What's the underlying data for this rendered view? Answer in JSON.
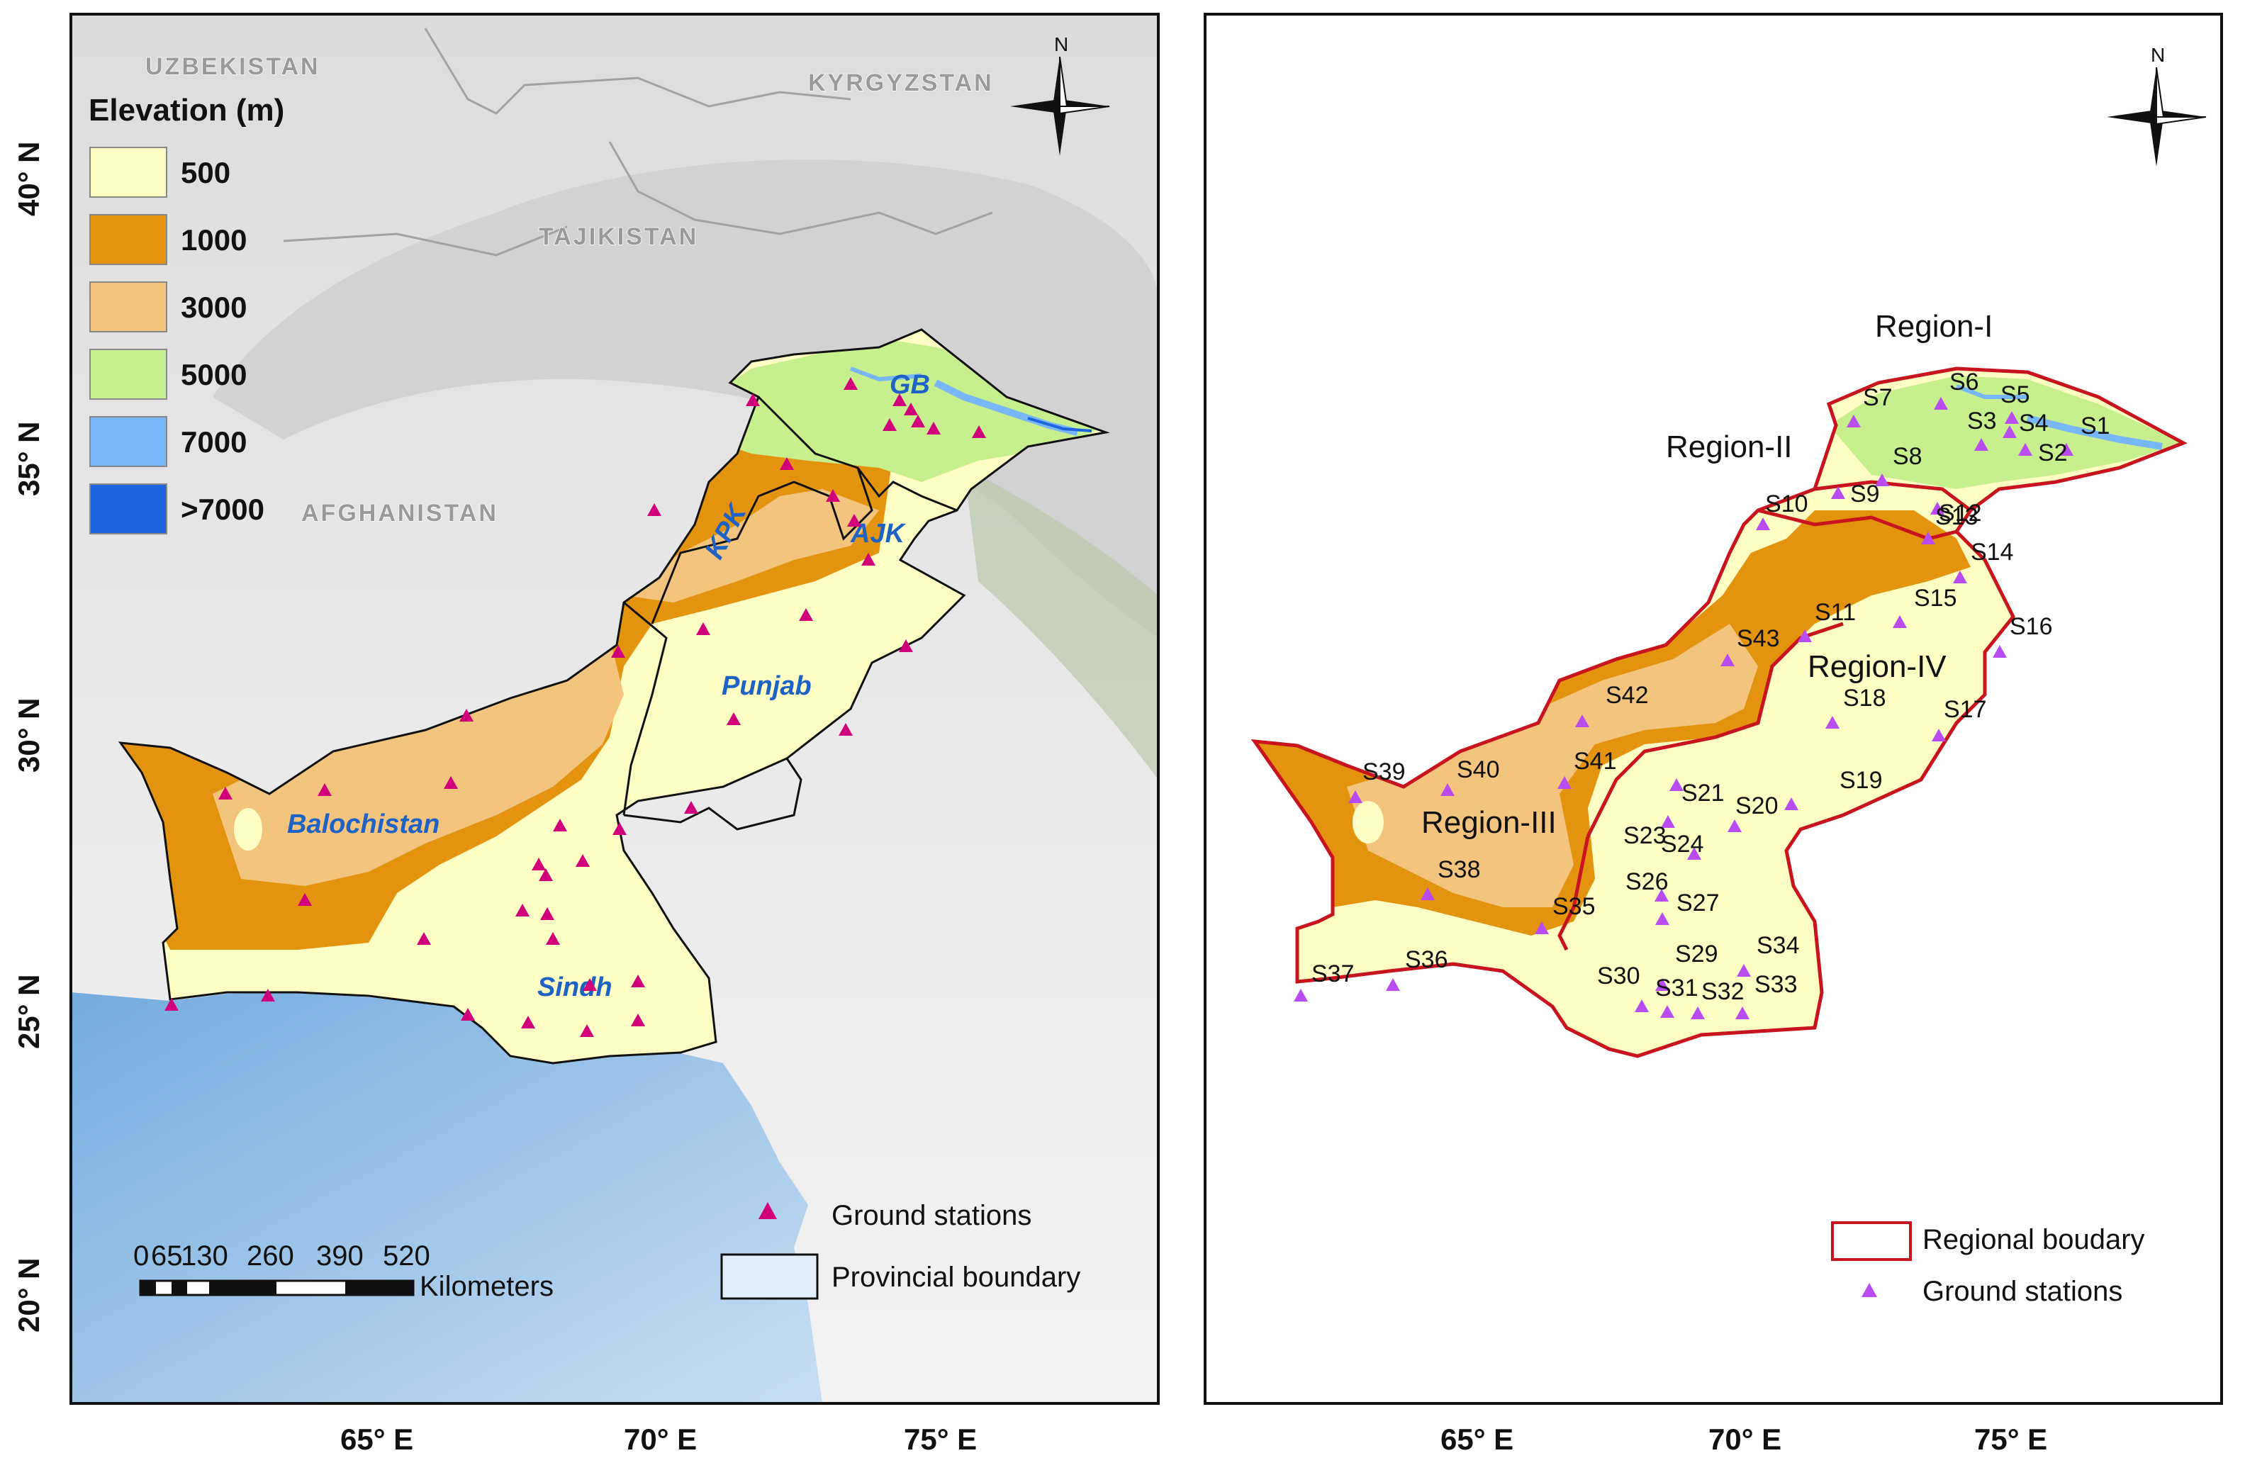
{
  "left_map": {
    "legend": {
      "title": "Elevation (m)",
      "items": [
        {
          "label": "500",
          "color": "#fefdc4"
        },
        {
          "label": "1000",
          "color": "#e4930f"
        },
        {
          "label": "3000",
          "color": "#f2c47e"
        },
        {
          "label": "5000",
          "color": "#c7ef8d"
        },
        {
          "label": "7000",
          "color": "#78b7f7"
        },
        {
          "label": ">7000",
          "color": "#1e63e0"
        }
      ]
    },
    "north_label": "N",
    "countries": [
      "UZBEKISTAN",
      "KYRGYZSTAN",
      "TAJIKISTAN",
      "AFGHANISTAN"
    ],
    "provinces": [
      "GB",
      "KPK",
      "AJK",
      "Punjab",
      "Balochistan",
      "Sindh"
    ],
    "lat_labels": [
      "40° N",
      "35° N",
      "30° N",
      "25° N",
      "20° N"
    ],
    "lon_labels": [
      "65° E",
      "70° E",
      "75° E"
    ],
    "scale": {
      "ticks": [
        "0",
        "65",
        "130",
        "260",
        "390",
        "520"
      ],
      "unit": "Kilometers"
    },
    "key": {
      "stations": "Ground stations",
      "boundary": "Provincial boundary"
    }
  },
  "right_map": {
    "north_label": "N",
    "regions": [
      "Region-I",
      "Region-II",
      "Region-III",
      "Region-IV"
    ],
    "stations": [
      "S1",
      "S2",
      "S3",
      "S4",
      "S5",
      "S6",
      "S7",
      "S8",
      "S9",
      "S10",
      "S11",
      "S12",
      "S13",
      "S14",
      "S15",
      "S16",
      "S17",
      "S18",
      "S19",
      "S20",
      "S21",
      "S23",
      "S24",
      "S26",
      "S27",
      "S29",
      "S30",
      "S31",
      "S32",
      "S33",
      "S34",
      "S35",
      "S36",
      "S37",
      "S38",
      "S39",
      "S40",
      "S41",
      "S42",
      "S43"
    ],
    "lon_labels": [
      "65° E",
      "70° E",
      "75° E"
    ],
    "key": {
      "boundary": "Regional boudary",
      "stations": "Ground stations"
    }
  },
  "colors": {
    "station_left": "#d1007a",
    "station_right": "#b84cf0",
    "region_border": "#c8141e",
    "province_label": "#1f62c6"
  }
}
